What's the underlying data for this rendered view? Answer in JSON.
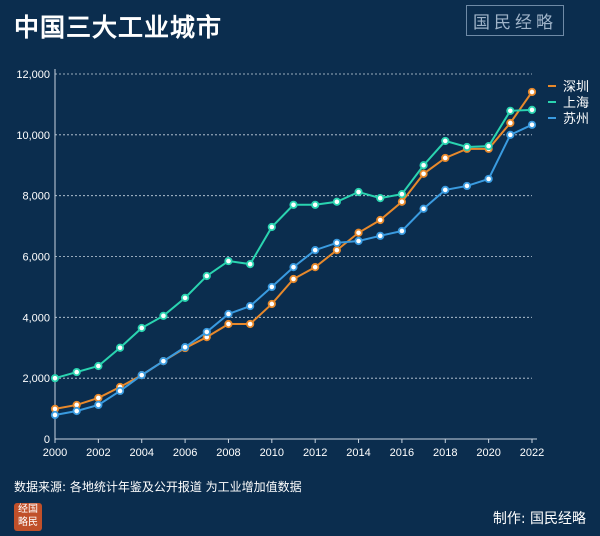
{
  "title": "中国三大工业城市",
  "logo_text": "国民经略",
  "source": "数据来源: 各地统计年鉴及公开报道  为工业增加值数据",
  "credit": "制作: 国民经略",
  "seal_text": "经国略民",
  "chart_data": {
    "type": "line",
    "title": "中国三大工业城市",
    "xlabel": "",
    "ylabel": "",
    "x": [
      2000,
      2001,
      2002,
      2003,
      2004,
      2005,
      2006,
      2007,
      2008,
      2009,
      2010,
      2011,
      2012,
      2013,
      2014,
      2015,
      2016,
      2017,
      2018,
      2019,
      2020,
      2021,
      2022
    ],
    "xticks": [
      "2000",
      "2002",
      "2004",
      "2006",
      "2008",
      "2010",
      "2012",
      "2014",
      "2016",
      "2018",
      "2020",
      "2022"
    ],
    "yticks": [
      "0",
      "2,000",
      "4,000",
      "6,000",
      "8,000",
      "10,000",
      "12,000"
    ],
    "ylim": [
      0,
      12000
    ],
    "grid": true,
    "legend_position": "top-right",
    "series": [
      {
        "name": "深圳",
        "color": "#e8892b",
        "values": [
          990,
          1120,
          1350,
          1710,
          2100,
          2560,
          2990,
          3350,
          3780,
          3780,
          4440,
          5260,
          5650,
          6210,
          6780,
          7200,
          7800,
          8720,
          9240,
          9540,
          9540,
          10390,
          11410
        ]
      },
      {
        "name": "上海",
        "color": "#2ad4b0",
        "values": [
          2000,
          2200,
          2400,
          3000,
          3650,
          4050,
          4640,
          5360,
          5850,
          5750,
          6970,
          7700,
          7700,
          7800,
          8120,
          7920,
          8050,
          9000,
          9800,
          9600,
          9630,
          10790,
          10820
        ]
      },
      {
        "name": "苏州",
        "color": "#3a9be0",
        "values": [
          790,
          920,
          1120,
          1580,
          2100,
          2560,
          3020,
          3520,
          4110,
          4370,
          5000,
          5650,
          6210,
          6450,
          6510,
          6680,
          6840,
          7570,
          8190,
          8320,
          8550,
          10000,
          10330
        ]
      }
    ]
  }
}
